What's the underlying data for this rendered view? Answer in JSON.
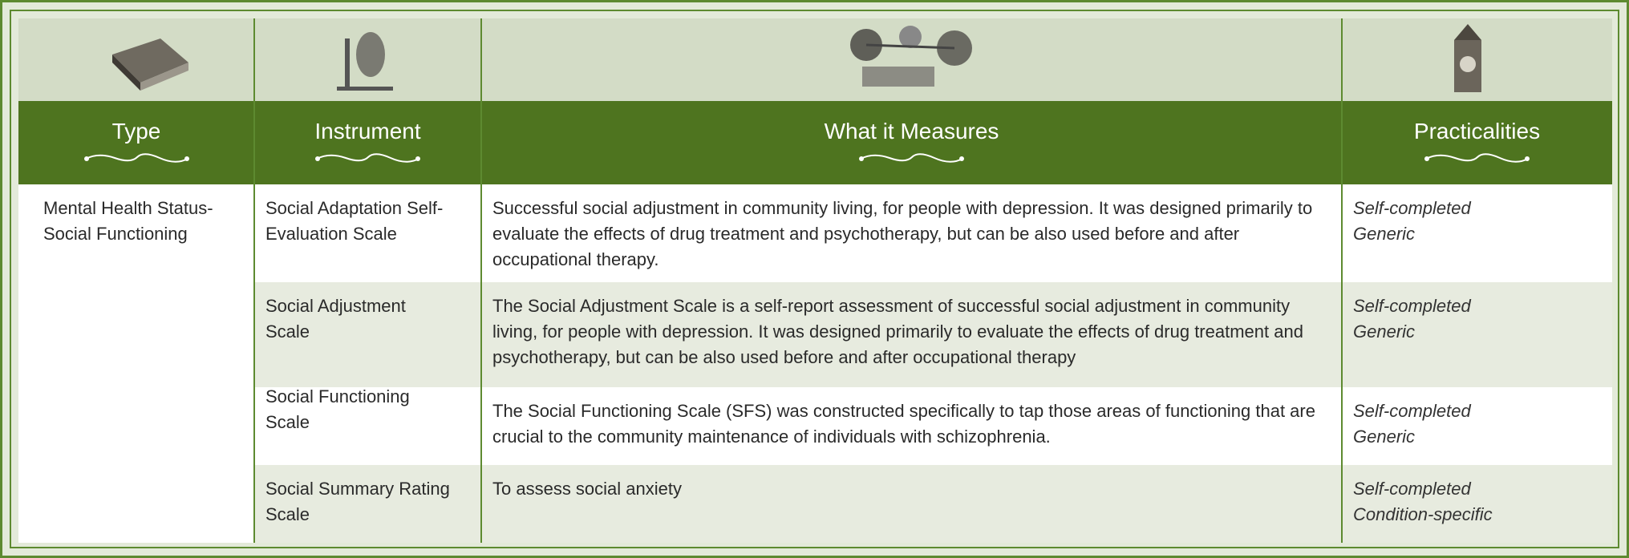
{
  "header": {
    "columns": [
      "Type",
      "Instrument",
      "What it Measures",
      "Practicalities"
    ]
  },
  "table": {
    "type": "Mental Health Status-Social Functioning",
    "rows": [
      {
        "instrument": "Social Adaptation Self-Evaluation Scale",
        "measures": "Successful social adjustment in community living, for people with depression. It was designed primarily to evaluate the effects of drug treatment and psychotherapy, but can be also used before and after occupational therapy.",
        "practicalities": [
          "Self-completed",
          "Generic"
        ]
      },
      {
        "instrument": "Social Adjustment Scale",
        "measures": "The Social Adjustment Scale is a self-report assessment of successful social adjustment in community living, for people with depression. It was designed primarily to evaluate the effects of drug treatment and psychotherapy, but can be also used before and after occupational therapy",
        "practicalities": [
          "Self-completed",
          "Generic"
        ]
      },
      {
        "instrument": "Social Functioning Scale",
        "measures": "The Social Functioning Scale (SFS) was constructed specifically to tap those areas of functioning that are crucial to the community maintenance of individuals with schizophrenia.",
        "practicalities": [
          "Self-completed",
          "Generic"
        ]
      },
      {
        "instrument": "Social Summary Rating Scale",
        "measures": "To assess social anxiety",
        "practicalities": [
          "Self-completed",
          "Condition-specific"
        ]
      }
    ]
  }
}
